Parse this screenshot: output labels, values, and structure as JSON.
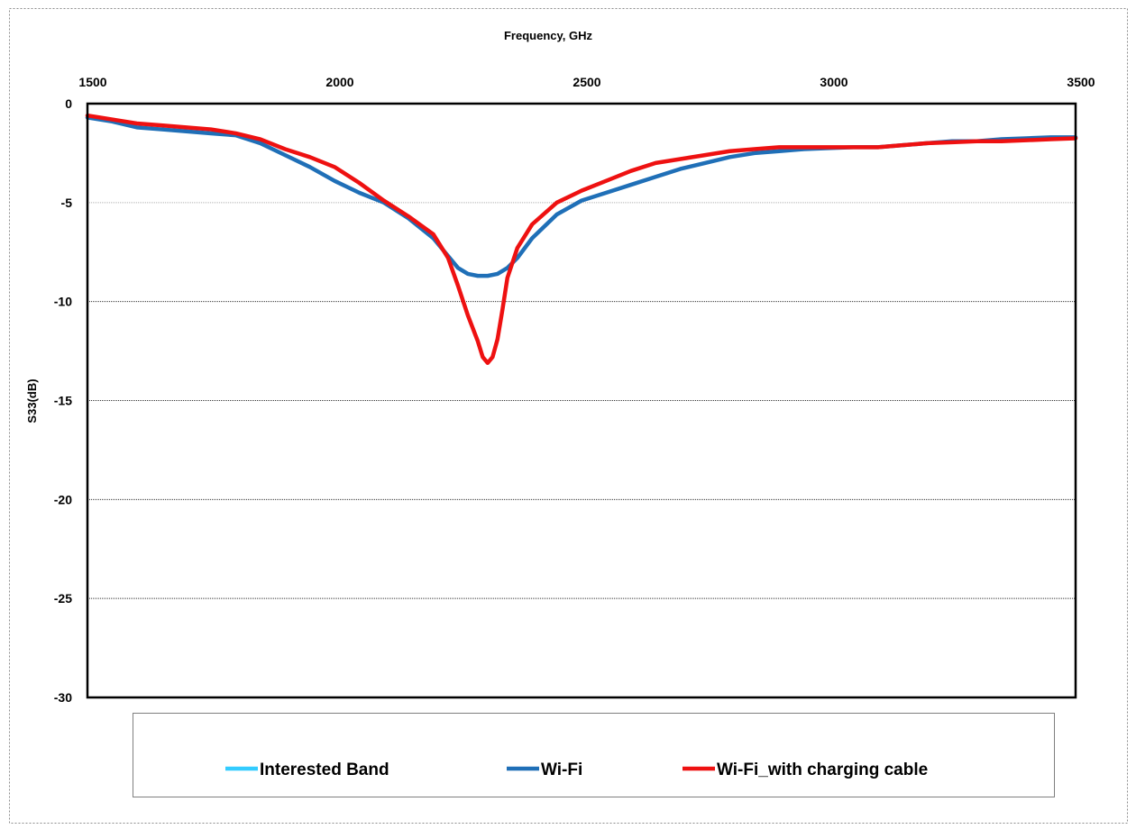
{
  "chart_data": {
    "type": "line",
    "title": "",
    "xlabel": "Frequency, GHz",
    "ylabel": "S33(dB)",
    "xlim": [
      1500,
      3500
    ],
    "ylim": [
      -30,
      0
    ],
    "x_ticks": [
      "1500",
      "2000",
      "2500",
      "3000",
      "3500"
    ],
    "y_ticks": [
      "0",
      "-5",
      "-10",
      "-15",
      "-20",
      "-25",
      "-30"
    ],
    "x_axis_position": "top",
    "grid": "horizontal dotted",
    "legend_position": "bottom",
    "series": [
      {
        "name": "Interested Band",
        "color": "#33ccff",
        "x": [],
        "y": []
      },
      {
        "name": "Wi-Fi",
        "color": "#1f6fb7",
        "x": [
          1500,
          1550,
          1600,
          1650,
          1700,
          1750,
          1800,
          1850,
          1900,
          1950,
          2000,
          2050,
          2100,
          2150,
          2200,
          2230,
          2250,
          2270,
          2290,
          2310,
          2330,
          2350,
          2370,
          2400,
          2450,
          2500,
          2550,
          2600,
          2650,
          2700,
          2750,
          2800,
          2850,
          2900,
          2950,
          3000,
          3050,
          3100,
          3150,
          3200,
          3250,
          3300,
          3350,
          3400,
          3450,
          3500
        ],
        "y": [
          -0.7,
          -0.9,
          -1.2,
          -1.3,
          -1.4,
          -1.5,
          -1.6,
          -2.0,
          -2.6,
          -3.2,
          -3.9,
          -4.5,
          -5.0,
          -5.8,
          -6.8,
          -7.7,
          -8.3,
          -8.6,
          -8.7,
          -8.7,
          -8.6,
          -8.3,
          -7.8,
          -6.8,
          -5.6,
          -4.9,
          -4.5,
          -4.1,
          -3.7,
          -3.3,
          -3.0,
          -2.7,
          -2.5,
          -2.4,
          -2.3,
          -2.25,
          -2.2,
          -2.2,
          -2.1,
          -2.0,
          -1.9,
          -1.9,
          -1.8,
          -1.75,
          -1.7,
          -1.7
        ]
      },
      {
        "name": "Wi-Fi_with charging cable",
        "color": "#ee1111",
        "x": [
          1500,
          1550,
          1600,
          1650,
          1700,
          1750,
          1800,
          1850,
          1900,
          1950,
          2000,
          2050,
          2100,
          2150,
          2200,
          2230,
          2250,
          2270,
          2290,
          2300,
          2310,
          2320,
          2330,
          2340,
          2350,
          2370,
          2400,
          2450,
          2500,
          2550,
          2600,
          2650,
          2700,
          2750,
          2800,
          2850,
          2900,
          2950,
          3000,
          3050,
          3100,
          3150,
          3200,
          3250,
          3300,
          3350,
          3400,
          3450,
          3500
        ],
        "y": [
          -0.6,
          -0.8,
          -1.0,
          -1.1,
          -1.2,
          -1.3,
          -1.5,
          -1.8,
          -2.3,
          -2.7,
          -3.2,
          -4.0,
          -4.9,
          -5.7,
          -6.6,
          -7.8,
          -9.2,
          -10.7,
          -12.0,
          -12.8,
          -13.1,
          -12.8,
          -11.9,
          -10.4,
          -8.8,
          -7.3,
          -6.1,
          -5.0,
          -4.4,
          -3.9,
          -3.4,
          -3.0,
          -2.8,
          -2.6,
          -2.4,
          -2.3,
          -2.2,
          -2.2,
          -2.2,
          -2.2,
          -2.2,
          -2.1,
          -2.0,
          -1.95,
          -1.9,
          -1.9,
          -1.85,
          -1.8,
          -1.75
        ]
      }
    ]
  }
}
